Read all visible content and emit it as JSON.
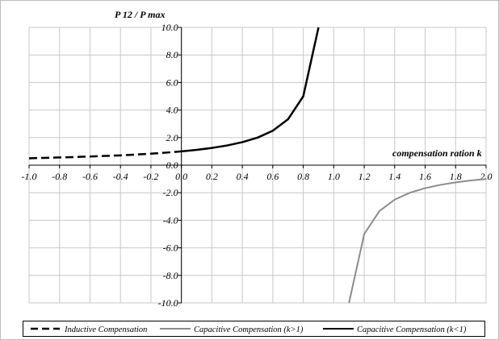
{
  "chart_data": {
    "type": "line",
    "ylabel": "P 12 / P max",
    "xlabel": "compensation ration k",
    "xlim": [
      -1.0,
      2.0
    ],
    "ylim": [
      -10.0,
      10.0
    ],
    "x_ticks": [
      "-1.0",
      "-0.8",
      "-0.6",
      "-0.4",
      "-0.2",
      "0.0",
      "0.2",
      "0.4",
      "0.6",
      "0.8",
      "1.0",
      "1.2",
      "1.4",
      "1.6",
      "1.8",
      "2.0"
    ],
    "y_ticks": [
      "10.0",
      "8.0",
      "6.0",
      "4.0",
      "2.0",
      "0.0",
      "-2.0",
      "-4.0",
      "-6.0",
      "-8.0",
      "-10.0"
    ],
    "grid": true,
    "legend_position": "bottom",
    "series": [
      {
        "name": "Inductive Compensation",
        "style": "dashed",
        "color": "#000000",
        "x": [
          -1.0,
          -0.9,
          -0.8,
          -0.7,
          -0.6,
          -0.5,
          -0.4,
          -0.3,
          -0.2,
          -0.1,
          0.0
        ],
        "y": [
          0.5,
          0.53,
          0.56,
          0.59,
          0.63,
          0.67,
          0.71,
          0.77,
          0.83,
          0.91,
          1.0
        ]
      },
      {
        "name": "Capacitive Compensation (k>1)",
        "style": "solid",
        "color": "#8c8c8c",
        "x": [
          1.1,
          1.2,
          1.3,
          1.4,
          1.5,
          1.6,
          1.7,
          1.8,
          1.9,
          2.0
        ],
        "y": [
          -10.0,
          -5.0,
          -3.33,
          -2.5,
          -2.0,
          -1.67,
          -1.43,
          -1.25,
          -1.11,
          -1.0
        ]
      },
      {
        "name": "Capacitive Compensation (k<1)",
        "style": "solid",
        "color": "#000000",
        "x": [
          0.0,
          0.1,
          0.2,
          0.3,
          0.4,
          0.5,
          0.6,
          0.7,
          0.8,
          0.9
        ],
        "y": [
          1.0,
          1.11,
          1.25,
          1.43,
          1.67,
          2.0,
          2.5,
          3.33,
          5.0,
          10.0
        ]
      }
    ]
  }
}
